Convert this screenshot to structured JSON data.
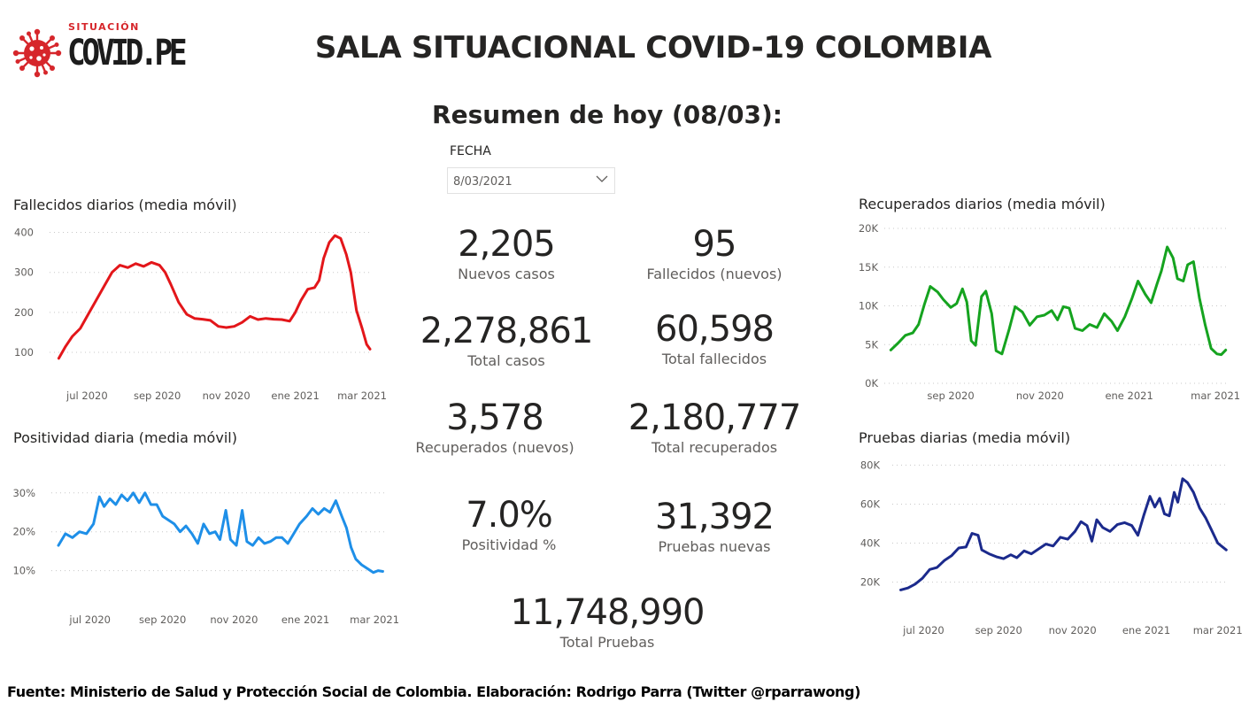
{
  "logo": {
    "top_text": "SITUACIÓN",
    "brand": "COVID.PE"
  },
  "header": {
    "title": "SALA SITUACIONAL COVID-19 COLOMBIA",
    "summary": "Resumen de hoy (08/03):"
  },
  "slicer": {
    "label": "FECHA",
    "value": "8/03/2021"
  },
  "kpis": {
    "nuevos_casos": {
      "value": "2,205",
      "label": "Nuevos casos"
    },
    "fallecidos_nuevos": {
      "value": "95",
      "label": "Fallecidos (nuevos)"
    },
    "total_casos": {
      "value": "2,278,861",
      "label": "Total casos"
    },
    "total_fallecidos": {
      "value": "60,598",
      "label": "Total fallecidos"
    },
    "recuperados_nuevos": {
      "value": "3,578",
      "label": "Recuperados (nuevos)"
    },
    "total_recuperados": {
      "value": "2,180,777",
      "label": "Total recuperados"
    },
    "positividad": {
      "value": "7.0%",
      "label": "Positividad %"
    },
    "pruebas_nuevas": {
      "value": "31,392",
      "label": "Pruebas nuevas"
    },
    "total_pruebas": {
      "value": "11,748,990",
      "label": "Total Pruebas"
    }
  },
  "footer": "Fuente: Ministerio de Salud y Protección Social de Colombia. Elaboración: Rodrigo Parra (Twitter @rparrawong)",
  "chart_data": [
    {
      "id": "fallecidos",
      "type": "line",
      "title": "Fallecidos diarios (media móvil)",
      "color": "#e3161a",
      "y_ticks": [
        100,
        200,
        300,
        400
      ],
      "y_tick_labels": [
        "100",
        "200",
        "300",
        "400"
      ],
      "ylim": [
        78,
        410
      ],
      "xlim": [
        "2020-06-01",
        "2021-03-08"
      ],
      "x_ticks": [
        {
          "date": "2020-07-01",
          "label": "jul 2020"
        },
        {
          "date": "2020-09-01",
          "label": "sep 2020"
        },
        {
          "date": "2020-11-01",
          "label": "nov 2020"
        },
        {
          "date": "2021-01-01",
          "label": "ene 2021"
        },
        {
          "date": "2021-03-01",
          "label": "mar 2021"
        }
      ],
      "grid": true,
      "points": [
        [
          "2020-06-06",
          85
        ],
        [
          "2020-06-12",
          115
        ],
        [
          "2020-06-18",
          140
        ],
        [
          "2020-06-25",
          160
        ],
        [
          "2020-07-02",
          195
        ],
        [
          "2020-07-09",
          230
        ],
        [
          "2020-07-16",
          265
        ],
        [
          "2020-07-23",
          300
        ],
        [
          "2020-07-30",
          318
        ],
        [
          "2020-08-06",
          312
        ],
        [
          "2020-08-13",
          322
        ],
        [
          "2020-08-20",
          315
        ],
        [
          "2020-08-27",
          325
        ],
        [
          "2020-09-03",
          318
        ],
        [
          "2020-09-08",
          300
        ],
        [
          "2020-09-13",
          270
        ],
        [
          "2020-09-20",
          225
        ],
        [
          "2020-09-27",
          195
        ],
        [
          "2020-10-04",
          185
        ],
        [
          "2020-10-11",
          183
        ],
        [
          "2020-10-18",
          180
        ],
        [
          "2020-10-25",
          165
        ],
        [
          "2020-11-01",
          162
        ],
        [
          "2020-11-08",
          165
        ],
        [
          "2020-11-15",
          175
        ],
        [
          "2020-11-22",
          190
        ],
        [
          "2020-11-29",
          182
        ],
        [
          "2020-12-06",
          185
        ],
        [
          "2020-12-13",
          183
        ],
        [
          "2020-12-20",
          182
        ],
        [
          "2020-12-27",
          178
        ],
        [
          "2021-01-01",
          200
        ],
        [
          "2021-01-06",
          230
        ],
        [
          "2021-01-12",
          258
        ],
        [
          "2021-01-18",
          262
        ],
        [
          "2021-01-22",
          280
        ],
        [
          "2021-01-26",
          335
        ],
        [
          "2021-01-31",
          375
        ],
        [
          "2021-02-05",
          392
        ],
        [
          "2021-02-10",
          385
        ],
        [
          "2021-02-15",
          345
        ],
        [
          "2021-02-19",
          300
        ],
        [
          "2021-02-24",
          205
        ],
        [
          "2021-03-01",
          160
        ],
        [
          "2021-03-05",
          120
        ],
        [
          "2021-03-08",
          108
        ]
      ]
    },
    {
      "id": "recuperados",
      "type": "line",
      "title": "Recuperados diarios (media móvil)",
      "color": "#15a31f",
      "y_ticks": [
        0,
        5000,
        10000,
        15000,
        20000
      ],
      "y_tick_labels": [
        "0K",
        "5K",
        "10K",
        "15K",
        "20K"
      ],
      "ylim": [
        0,
        20000
      ],
      "xlim": [
        "2020-07-20",
        "2021-03-10"
      ],
      "x_ticks": [
        {
          "date": "2020-09-01",
          "label": "sep 2020"
        },
        {
          "date": "2020-11-01",
          "label": "nov 2020"
        },
        {
          "date": "2021-01-01",
          "label": "ene 2021"
        },
        {
          "date": "2021-03-01",
          "label": "mar 2021"
        }
      ],
      "grid": true,
      "points": [
        [
          "2020-07-22",
          4300
        ],
        [
          "2020-07-27",
          5200
        ],
        [
          "2020-08-01",
          6200
        ],
        [
          "2020-08-06",
          6500
        ],
        [
          "2020-08-10",
          7600
        ],
        [
          "2020-08-14",
          10200
        ],
        [
          "2020-08-18",
          12500
        ],
        [
          "2020-08-23",
          11800
        ],
        [
          "2020-08-27",
          10800
        ],
        [
          "2020-09-01",
          9800
        ],
        [
          "2020-09-05",
          10300
        ],
        [
          "2020-09-09",
          12200
        ],
        [
          "2020-09-12",
          10500
        ],
        [
          "2020-09-15",
          5500
        ],
        [
          "2020-09-18",
          4900
        ],
        [
          "2020-09-22",
          11200
        ],
        [
          "2020-09-25",
          11900
        ],
        [
          "2020-09-29",
          9000
        ],
        [
          "2020-10-02",
          4200
        ],
        [
          "2020-10-06",
          3800
        ],
        [
          "2020-10-11",
          7000
        ],
        [
          "2020-10-15",
          9900
        ],
        [
          "2020-10-20",
          9200
        ],
        [
          "2020-10-25",
          7500
        ],
        [
          "2020-10-30",
          8600
        ],
        [
          "2020-11-04",
          8800
        ],
        [
          "2020-11-09",
          9400
        ],
        [
          "2020-11-13",
          8200
        ],
        [
          "2020-11-17",
          9900
        ],
        [
          "2020-11-21",
          9700
        ],
        [
          "2020-11-25",
          7100
        ],
        [
          "2020-11-30",
          6800
        ],
        [
          "2020-12-05",
          7600
        ],
        [
          "2020-12-10",
          7200
        ],
        [
          "2020-12-15",
          9000
        ],
        [
          "2020-12-20",
          8000
        ],
        [
          "2020-12-24",
          6800
        ],
        [
          "2020-12-29",
          8600
        ],
        [
          "2021-01-03",
          11000
        ],
        [
          "2021-01-07",
          13200
        ],
        [
          "2021-01-12",
          11500
        ],
        [
          "2021-01-16",
          10400
        ],
        [
          "2021-01-20",
          12800
        ],
        [
          "2021-01-23",
          14500
        ],
        [
          "2021-01-27",
          17600
        ],
        [
          "2021-01-31",
          16200
        ],
        [
          "2021-02-03",
          13500
        ],
        [
          "2021-02-07",
          13200
        ],
        [
          "2021-02-10",
          15300
        ],
        [
          "2021-02-14",
          15700
        ],
        [
          "2021-02-18",
          11000
        ],
        [
          "2021-02-22",
          7500
        ],
        [
          "2021-02-26",
          4500
        ],
        [
          "2021-03-02",
          3800
        ],
        [
          "2021-03-05",
          3700
        ],
        [
          "2021-03-08",
          4300
        ]
      ]
    },
    {
      "id": "positividad",
      "type": "line",
      "title": "Positividad diaria (media móvil)",
      "color": "#1e8fe8",
      "y_ticks": [
        10,
        20,
        30
      ],
      "y_tick_labels": [
        "10%",
        "20%",
        "30%"
      ],
      "ylim": [
        6.5,
        32
      ],
      "xlim": [
        "2020-06-01",
        "2021-03-10"
      ],
      "x_ticks": [
        {
          "date": "2020-07-01",
          "label": "jul 2020"
        },
        {
          "date": "2020-09-01",
          "label": "sep 2020"
        },
        {
          "date": "2020-11-01",
          "label": "nov 2020"
        },
        {
          "date": "2021-01-01",
          "label": "ene 2021"
        },
        {
          "date": "2021-03-01",
          "label": "mar 2021"
        }
      ],
      "grid": true,
      "points": [
        [
          "2020-06-04",
          16.5
        ],
        [
          "2020-06-10",
          19.5
        ],
        [
          "2020-06-16",
          18.5
        ],
        [
          "2020-06-22",
          20.0
        ],
        [
          "2020-06-28",
          19.5
        ],
        [
          "2020-07-04",
          22.0
        ],
        [
          "2020-07-09",
          29.0
        ],
        [
          "2020-07-13",
          26.5
        ],
        [
          "2020-07-18",
          28.5
        ],
        [
          "2020-07-23",
          27.0
        ],
        [
          "2020-07-28",
          29.5
        ],
        [
          "2020-08-02",
          28.0
        ],
        [
          "2020-08-07",
          30.0
        ],
        [
          "2020-08-12",
          27.5
        ],
        [
          "2020-08-17",
          30.0
        ],
        [
          "2020-08-22",
          27.0
        ],
        [
          "2020-08-27",
          27.0
        ],
        [
          "2020-09-01",
          24.0
        ],
        [
          "2020-09-06",
          23.0
        ],
        [
          "2020-09-11",
          22.0
        ],
        [
          "2020-09-16",
          20.0
        ],
        [
          "2020-09-21",
          21.5
        ],
        [
          "2020-09-26",
          19.5
        ],
        [
          "2020-10-01",
          17.0
        ],
        [
          "2020-10-06",
          22.0
        ],
        [
          "2020-10-11",
          19.5
        ],
        [
          "2020-10-16",
          20.0
        ],
        [
          "2020-10-20",
          18.0
        ],
        [
          "2020-10-25",
          25.5
        ],
        [
          "2020-10-29",
          18.0
        ],
        [
          "2020-11-03",
          16.5
        ],
        [
          "2020-11-08",
          25.5
        ],
        [
          "2020-11-12",
          17.5
        ],
        [
          "2020-11-17",
          16.5
        ],
        [
          "2020-11-22",
          18.5
        ],
        [
          "2020-11-27",
          17.0
        ],
        [
          "2020-12-02",
          17.5
        ],
        [
          "2020-12-07",
          18.5
        ],
        [
          "2020-12-12",
          18.5
        ],
        [
          "2020-12-17",
          17.0
        ],
        [
          "2020-12-22",
          19.5
        ],
        [
          "2020-12-27",
          22.0
        ],
        [
          "2021-01-02",
          24.0
        ],
        [
          "2021-01-07",
          26.0
        ],
        [
          "2021-01-12",
          24.5
        ],
        [
          "2021-01-17",
          26.0
        ],
        [
          "2021-01-22",
          25.0
        ],
        [
          "2021-01-27",
          28.0
        ],
        [
          "2021-02-01",
          24.0
        ],
        [
          "2021-02-05",
          21.0
        ],
        [
          "2021-02-09",
          16.0
        ],
        [
          "2021-02-13",
          13.0
        ],
        [
          "2021-02-18",
          11.5
        ],
        [
          "2021-02-23",
          10.5
        ],
        [
          "2021-02-28",
          9.5
        ],
        [
          "2021-03-04",
          10.0
        ],
        [
          "2021-03-08",
          9.8
        ]
      ]
    },
    {
      "id": "pruebas",
      "type": "line",
      "title": "Pruebas diarias (media móvil)",
      "color": "#1b2a8c",
      "y_ticks": [
        20000,
        40000,
        60000,
        80000
      ],
      "y_tick_labels": [
        "20K",
        "40K",
        "60K",
        "80K"
      ],
      "ylim": [
        13000,
        82000
      ],
      "xlim": [
        "2020-06-08",
        "2021-03-10"
      ],
      "x_ticks": [
        {
          "date": "2020-07-01",
          "label": "jul 2020"
        },
        {
          "date": "2020-09-01",
          "label": "sep 2020"
        },
        {
          "date": "2020-11-01",
          "label": "nov 2020"
        },
        {
          "date": "2021-01-01",
          "label": "ene 2021"
        },
        {
          "date": "2021-03-01",
          "label": "mar 2021"
        }
      ],
      "grid": true,
      "points": [
        [
          "2020-06-12",
          16000
        ],
        [
          "2020-06-18",
          17000
        ],
        [
          "2020-06-24",
          19000
        ],
        [
          "2020-06-30",
          22000
        ],
        [
          "2020-07-06",
          26500
        ],
        [
          "2020-07-12",
          27500
        ],
        [
          "2020-07-18",
          31000
        ],
        [
          "2020-07-24",
          33500
        ],
        [
          "2020-07-30",
          37500
        ],
        [
          "2020-08-05",
          38000
        ],
        [
          "2020-08-10",
          45000
        ],
        [
          "2020-08-15",
          44000
        ],
        [
          "2020-08-18",
          36500
        ],
        [
          "2020-08-24",
          34500
        ],
        [
          "2020-08-30",
          33000
        ],
        [
          "2020-09-05",
          32000
        ],
        [
          "2020-09-11",
          34000
        ],
        [
          "2020-09-16",
          32500
        ],
        [
          "2020-09-22",
          36000
        ],
        [
          "2020-09-28",
          34500
        ],
        [
          "2020-10-04",
          37000
        ],
        [
          "2020-10-10",
          39500
        ],
        [
          "2020-10-16",
          38500
        ],
        [
          "2020-10-22",
          43000
        ],
        [
          "2020-10-28",
          42000
        ],
        [
          "2020-11-03",
          46000
        ],
        [
          "2020-11-08",
          51000
        ],
        [
          "2020-11-13",
          49000
        ],
        [
          "2020-11-17",
          41000
        ],
        [
          "2020-11-21",
          52000
        ],
        [
          "2020-11-26",
          48000
        ],
        [
          "2020-12-02",
          46000
        ],
        [
          "2020-12-08",
          49500
        ],
        [
          "2020-12-14",
          50500
        ],
        [
          "2020-12-20",
          49000
        ],
        [
          "2020-12-25",
          44000
        ],
        [
          "2020-12-30",
          54500
        ],
        [
          "2021-01-04",
          64000
        ],
        [
          "2021-01-08",
          58500
        ],
        [
          "2021-01-12",
          63000
        ],
        [
          "2021-01-16",
          55000
        ],
        [
          "2021-01-20",
          54000
        ],
        [
          "2021-01-24",
          66000
        ],
        [
          "2021-01-27",
          61000
        ],
        [
          "2021-01-31",
          73000
        ],
        [
          "2021-02-04",
          71000
        ],
        [
          "2021-02-09",
          66000
        ],
        [
          "2021-02-14",
          58000
        ],
        [
          "2021-02-19",
          53000
        ],
        [
          "2021-02-24",
          46500
        ],
        [
          "2021-03-01",
          40000
        ],
        [
          "2021-03-05",
          38000
        ],
        [
          "2021-03-08",
          36500
        ]
      ]
    }
  ]
}
